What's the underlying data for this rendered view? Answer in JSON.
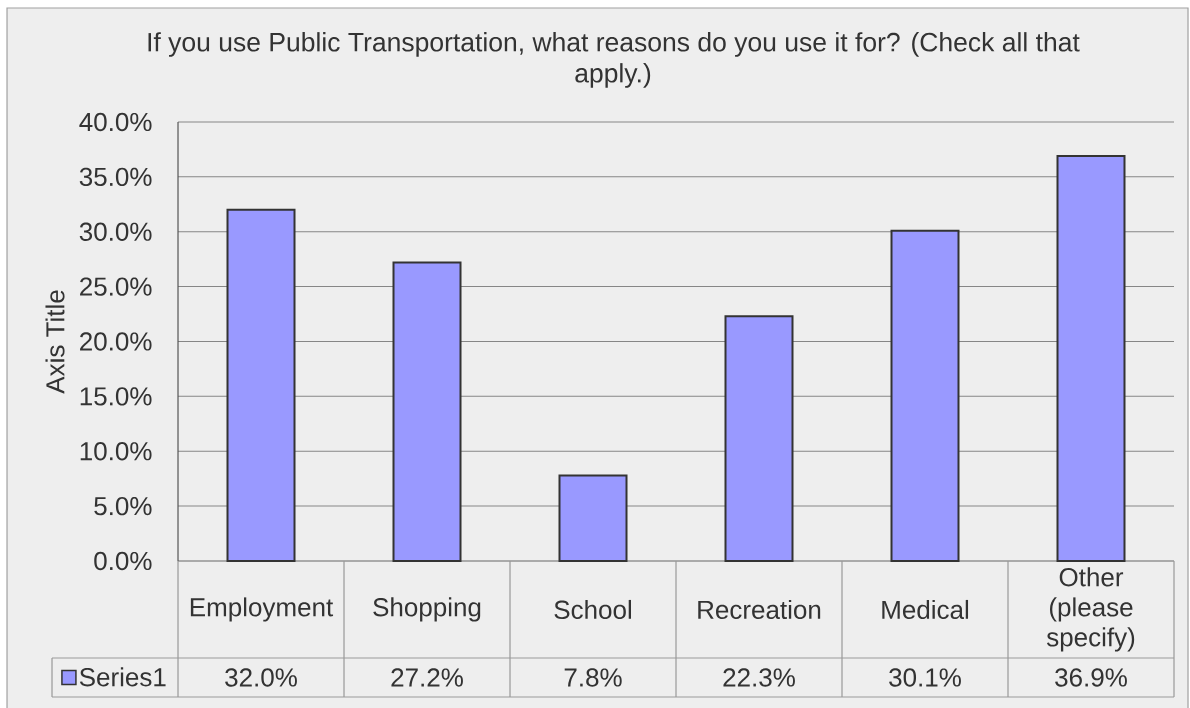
{
  "chart_data": {
    "type": "bar",
    "title": "If you use Public Transportation, what reasons do you use it for? (Check all that apply.)",
    "ylabel": "Axis Title",
    "categories": [
      "Employment",
      "Shopping",
      "School",
      "Recreation",
      "Medical",
      "Other (please specify)"
    ],
    "series": [
      {
        "name": "Series1",
        "color": "#9999ff",
        "values": [
          32.0,
          27.2,
          7.8,
          22.3,
          30.1,
          36.9
        ],
        "value_labels": [
          "32.0%",
          "27.2%",
          "7.8%",
          "22.3%",
          "30.1%",
          "36.9%"
        ]
      }
    ],
    "ylim": [
      0,
      40
    ],
    "yticks": [
      {
        "value": 0,
        "label": "0.0%"
      },
      {
        "value": 5,
        "label": "5.0%"
      },
      {
        "value": 10,
        "label": "10.0%"
      },
      {
        "value": 15,
        "label": "15.0%"
      },
      {
        "value": 20,
        "label": "20.0%"
      },
      {
        "value": 25,
        "label": "25.0%"
      },
      {
        "value": 30,
        "label": "30.0%"
      },
      {
        "value": 35,
        "label": "35.0%"
      },
      {
        "value": 40,
        "label": "40.0%"
      }
    ],
    "grid": "y",
    "legend": "bottom left"
  }
}
